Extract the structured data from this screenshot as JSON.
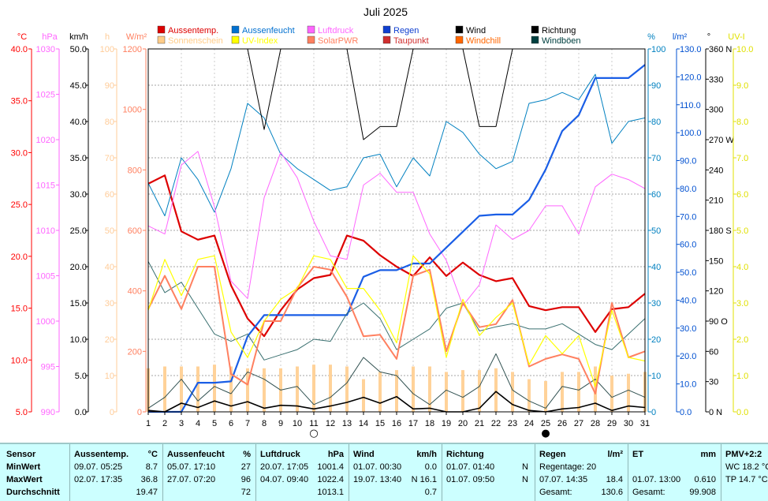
{
  "chart_data": {
    "type": "line",
    "title": "Juli 2025",
    "x_ticks": [
      "1",
      "2",
      "3",
      "4",
      "5",
      "6",
      "7",
      "8",
      "9",
      "10",
      "11",
      "12",
      "13",
      "14",
      "15",
      "16",
      "17",
      "18",
      "19",
      "20",
      "21",
      "22",
      "23",
      "24",
      "25",
      "26",
      "27",
      "28",
      "29",
      "30",
      "31"
    ],
    "axes": {
      "temp": {
        "unit": "°C",
        "color": "#ff0000",
        "min": 5,
        "max": 40,
        "ticks": [
          "5.0",
          "10.0",
          "15.0",
          "20.0",
          "25.0",
          "30.0",
          "35.0",
          "40.0"
        ]
      },
      "press": {
        "unit": "hPa",
        "color": "#ff66ff",
        "min": 990,
        "max": 1030,
        "ticks": [
          "990",
          "995",
          "1000",
          "1005",
          "1010",
          "1015",
          "1020",
          "1025",
          "1030"
        ]
      },
      "wind": {
        "unit": "km/h",
        "color": "#000000",
        "min": 0,
        "max": 50,
        "ticks": [
          "0.0",
          "5.0",
          "10.0",
          "15.0",
          "20.0",
          "25.0",
          "30.0",
          "35.0",
          "40.0",
          "45.0",
          "50.0"
        ]
      },
      "sun": {
        "unit": "h",
        "color": "#ffcc99",
        "min": 0,
        "max": 100,
        "ticks": [
          "0",
          "10",
          "20",
          "30",
          "40",
          "50",
          "60",
          "70",
          "80",
          "90",
          "100"
        ]
      },
      "solar": {
        "unit": "W/m²",
        "color": "#ff8060",
        "min": 0,
        "max": 1200,
        "ticks": [
          "0",
          "200",
          "400",
          "600",
          "800",
          "1000",
          "1200"
        ]
      },
      "hum": {
        "unit": "%",
        "color": "#0080c0",
        "min": 0,
        "max": 100,
        "ticks": [
          "0",
          "10",
          "20",
          "30",
          "40",
          "50",
          "60",
          "70",
          "80",
          "90",
          "100"
        ]
      },
      "rain": {
        "unit": "l/m²",
        "color": "#0050d0",
        "min": 0,
        "max": 137,
        "ticks": [
          "0.0",
          "10.0",
          "20.0",
          "30.0",
          "40.0",
          "50.0",
          "60.0",
          "70.0",
          "80.0",
          "90.0",
          "100.0",
          "110.0",
          "120.0",
          "130.0"
        ]
      },
      "dir": {
        "unit": "°",
        "color": "#000000",
        "min": 0,
        "max": 360,
        "ticks": [
          "0 N",
          "30",
          "60",
          "90 O",
          "120",
          "150",
          "180 S",
          "210",
          "240",
          "270 W",
          "300",
          "330",
          "360 N"
        ]
      },
      "uv": {
        "unit": "UV-I",
        "color": "#e0e000",
        "min": 0,
        "max": 10,
        "ticks": [
          "0.0",
          "1.0",
          "2.0",
          "3.0",
          "4.0",
          "5.0",
          "6.0",
          "7.0",
          "8.0",
          "9.0",
          "10.0"
        ]
      }
    },
    "legend": [
      {
        "name": "Aussentemp.",
        "color": "#dd0000"
      },
      {
        "name": "Aussenfeucht",
        "color": "#0070d0"
      },
      {
        "name": "Luftdruck",
        "color": "#ff66ff"
      },
      {
        "name": "Regen",
        "color": "#1040d0"
      },
      {
        "name": "Wind",
        "color": "#000000"
      },
      {
        "name": "Richtung",
        "color": "#000000"
      },
      {
        "name": "Sonnenschein",
        "color": "#ffcc88"
      },
      {
        "name": "UV-Index",
        "color": "#ffff00"
      },
      {
        "name": "SolarPWR",
        "color": "#ff8060"
      },
      {
        "name": "Taupunkt",
        "color": "#d03030"
      },
      {
        "name": "Windchill",
        "color": "#ff6600"
      },
      {
        "name": "Windböen",
        "color": "#004040"
      }
    ],
    "series": [
      {
        "name": "Aussentemp.",
        "axis": "temp",
        "color": "#dd0000",
        "width": 2.2,
        "values": [
          27.0,
          27.8,
          22.4,
          21.6,
          22.0,
          17.2,
          14.0,
          12.3,
          14.8,
          16.8,
          17.9,
          18.2,
          22.0,
          21.5,
          20.1,
          19.0,
          18.1,
          19.9,
          18.1,
          19.4,
          18.2,
          17.6,
          17.9,
          15.2,
          14.8,
          15.1,
          15.1,
          12.7,
          14.9,
          15.1,
          16.4
        ]
      },
      {
        "name": "Aussenfeucht",
        "axis": "hum",
        "color": "#0080c0",
        "width": 1,
        "values": [
          63,
          54,
          70,
          64,
          55,
          67,
          85,
          81,
          71,
          67,
          64,
          61,
          62,
          70,
          71,
          62,
          70,
          65,
          80,
          77,
          71,
          67,
          69,
          85,
          86,
          88,
          86,
          93,
          74,
          80,
          81
        ]
      },
      {
        "name": "Luftdruck",
        "axis": "press",
        "color": "#ff66ff",
        "width": 1,
        "values": [
          1010.5,
          1009.6,
          1017.2,
          1018.7,
          1012.6,
          1004.4,
          1002.5,
          1013.6,
          1018.6,
          1015.8,
          1011.0,
          1007.2,
          1006.8,
          1015.0,
          1016.3,
          1014.2,
          1014.2,
          1009.6,
          1006.7,
          1001.7,
          1004.0,
          1010.6,
          1009.0,
          1010.0,
          1012.7,
          1012.7,
          1009.6,
          1014.8,
          1016.2,
          1015.6,
          1014.6
        ]
      },
      {
        "name": "Regen",
        "axis": "rain",
        "color": "#1a5ee6",
        "width": 2.2,
        "values": [
          0,
          0,
          0,
          11,
          11,
          11.5,
          28.5,
          36.5,
          36.5,
          36.5,
          36.5,
          36.5,
          36.5,
          51,
          53.5,
          53.5,
          56,
          56,
          62,
          68,
          74,
          74.5,
          74.5,
          80,
          91.5,
          106,
          112,
          126,
          126,
          126,
          131
        ]
      },
      {
        "name": "Wind",
        "axis": "wind",
        "color": "#000000",
        "width": 1.6,
        "values": [
          0.2,
          0,
          1.2,
          0.6,
          1.5,
          0.8,
          1.4,
          0.5,
          0.9,
          0.8,
          0.4,
          0.8,
          1.3,
          2.0,
          1.2,
          2.1,
          0.4,
          0.5,
          0.0,
          0.0,
          0.5,
          2.8,
          1.0,
          0.2,
          0.0,
          0.4,
          0.6,
          1.2,
          0.2,
          0.8,
          0.6
        ]
      },
      {
        "name": "Windböen",
        "axis": "wind",
        "color": "#305050",
        "width": 1,
        "values": [
          0.5,
          2.0,
          4.5,
          1.5,
          3.5,
          2.5,
          5.5,
          4.5,
          3.0,
          3.5,
          1.0,
          2.0,
          4.0,
          7.5,
          5.5,
          5.0,
          2.5,
          1.0,
          3.0,
          2.0,
          3.5,
          8.0,
          3.0,
          1.5,
          0.5,
          3.5,
          3.0,
          4.5,
          2.0,
          3.0,
          2.0
        ]
      },
      {
        "name": "Richtung",
        "axis": "dir",
        "color": "#000000",
        "width": 1,
        "values": [
          360,
          360,
          360,
          360,
          360,
          360,
          360,
          280,
          360,
          360,
          360,
          360,
          360,
          270,
          283,
          283,
          360,
          360,
          360,
          360,
          283,
          283,
          360,
          360,
          360,
          360,
          360,
          360,
          360,
          360,
          360
        ]
      },
      {
        "name": "Taupunkt",
        "axis": "temp",
        "color": "#3a7070",
        "width": 1,
        "values": [
          19.5,
          16.5,
          17.5,
          15.0,
          12.5,
          11.8,
          12.5,
          10.0,
          10.5,
          11.0,
          12.0,
          11.8,
          14.5,
          15.5,
          14.0,
          11.0,
          12.0,
          13.0,
          15.0,
          15.5,
          12.8,
          13.2,
          13.5,
          13.0,
          13.0,
          13.5,
          12.5,
          11.5,
          11.0,
          12.5,
          14.0
        ]
      },
      {
        "name": "SolarPWR",
        "axis": "solar",
        "color": "#ff8060",
        "width": 2,
        "values": [
          340,
          450,
          340,
          480,
          480,
          125,
          90,
          300,
          300,
          410,
          480,
          470,
          380,
          250,
          255,
          175,
          450,
          470,
          200,
          360,
          280,
          290,
          370,
          150,
          175,
          190,
          175,
          60,
          360,
          180,
          200
        ]
      },
      {
        "name": "UV-Index",
        "axis": "uv",
        "color": "#ffff00",
        "width": 1.2,
        "values": [
          2.8,
          4.2,
          3.2,
          4.2,
          4.3,
          2.2,
          1.5,
          2.5,
          3.1,
          3.4,
          4.3,
          4.2,
          3.4,
          3.4,
          2.8,
          1.9,
          4.3,
          3.8,
          1.5,
          3.1,
          2.1,
          2.6,
          3.0,
          1.3,
          2.1,
          1.6,
          2.1,
          0.7,
          2.8,
          1.5,
          1.4
        ]
      }
    ],
    "bars": {
      "name": "Sonnenschein",
      "axis": "sun",
      "color": "#ffd299",
      "values": [
        12.0,
        12.5,
        12.5,
        12.5,
        13.0,
        12.5,
        12.0,
        12.0,
        12.0,
        12.5,
        13.0,
        13.0,
        12.5,
        9.0,
        11.0,
        11.5,
        12.5,
        12.5,
        11.0,
        11.5,
        11.5,
        12.0,
        11.0,
        9.0,
        8.5,
        11.0,
        11.0,
        12.5,
        10.0,
        10.5,
        11.0
      ]
    },
    "moon_markers": [
      {
        "day": "11",
        "symbol": "○"
      },
      {
        "day": "25",
        "symbol": "●"
      }
    ]
  },
  "table": {
    "row_labels": [
      "Sensor",
      "MinWert",
      "MaxWert",
      "Durchschnitt"
    ],
    "temp": {
      "header": "Aussentemp.",
      "unit": "°C",
      "min_time": "09.07.  05:25",
      "min": "8.7",
      "max_time": "02.07.  17:35",
      "max": "36.8",
      "avg": "19.47"
    },
    "hum": {
      "header": "Aussenfeucht",
      "unit": "%",
      "min_time": "05.07.  17:10",
      "min": "27",
      "max_time": "27.07.  07:20",
      "max": "96",
      "avg": "72"
    },
    "press": {
      "header": "Luftdruck",
      "unit": "hPa",
      "min_time": "20.07.  17:05",
      "min": "1001.4",
      "max_time": "04.07.  09:40",
      "max": "1022.4",
      "avg": "1013.1"
    },
    "wind": {
      "header": "Wind",
      "unit": "km/h",
      "min_time": "01.07.  00:30",
      "min": "0.0",
      "max_time": "19.07.  13:40",
      "max": "N 16.1",
      "avg": "0.7"
    },
    "dir": {
      "header": "Richtung",
      "min_time": "01.07.  01:40",
      "min": "N",
      "max_time": "01.07.  09:50",
      "max": "N"
    },
    "rain": {
      "header": "Regen",
      "unit": "l/m²",
      "line1": "Regentage: 20",
      "line2_label": "07.07.  14:35",
      "line2_value": "18.4",
      "line3_label": "Gesamt:",
      "line3_value": "130.6"
    },
    "et": {
      "header": "ET",
      "unit": "mm",
      "line2_label": "01.07.  13:00",
      "line2_value": "0.610",
      "line3_label": "Gesamt:",
      "line3_value": "99.908"
    },
    "pmv": {
      "header": "PMV+2:2",
      "line1": "WC 18.2 °C",
      "line2": "TP 14.7 °C"
    }
  }
}
